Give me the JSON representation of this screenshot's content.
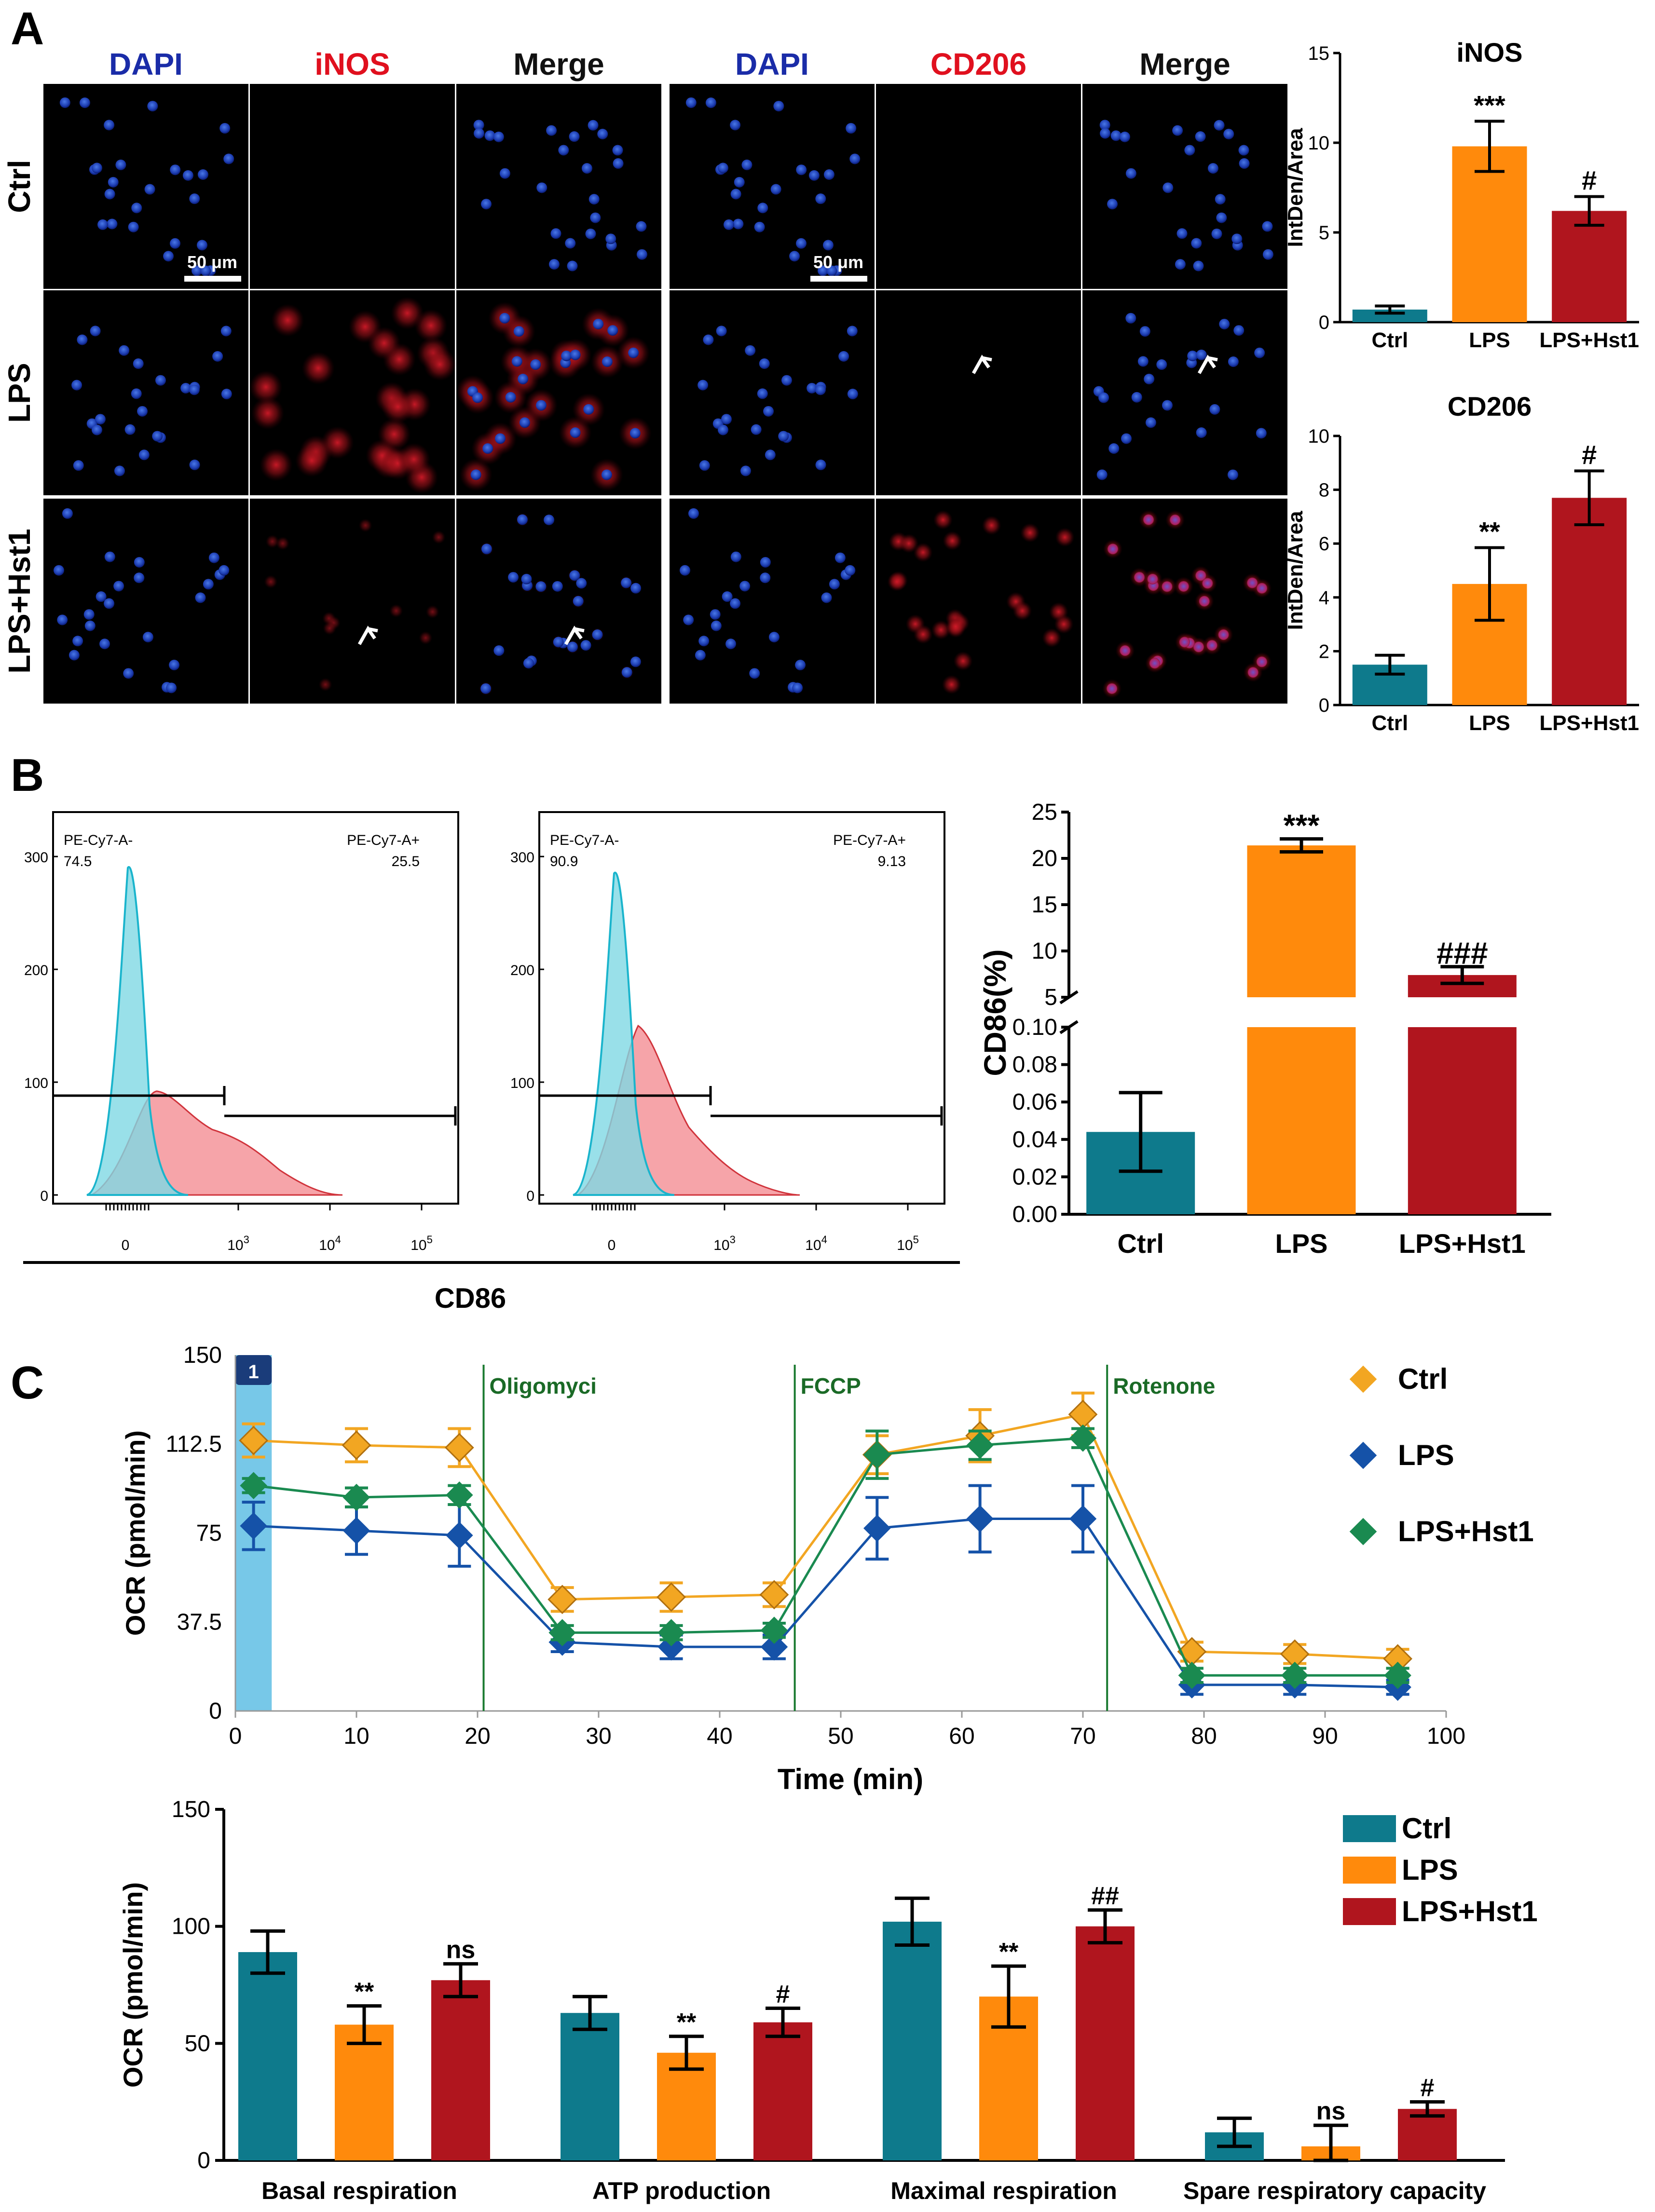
{
  "panels": {
    "A": "A",
    "B": "B",
    "C": "C"
  },
  "micro": {
    "columns": [
      "DAPI",
      "iNOS",
      "Merge",
      "DAPI",
      "CD206",
      "Merge"
    ],
    "column_colors": [
      "#1a2ca8",
      "#e0101e",
      "#111111",
      "#1a2ca8",
      "#e0101e",
      "#111111"
    ],
    "rows": [
      "Ctrl",
      "LPS",
      "LPS+Hst1"
    ],
    "scale_bar": "50 μm"
  },
  "flow": {
    "left": {
      "label_neg": "PE-Cy7-A-",
      "label_pos": "PE-Cy7-A+",
      "pct_neg": "74.5",
      "pct_pos": "25.5"
    },
    "right": {
      "label_neg": "PE-Cy7-A-",
      "label_pos": "PE-Cy7-A+",
      "pct_neg": "90.9",
      "pct_pos": "9.13"
    },
    "y_ticks": [
      "300",
      "200",
      "100",
      "0"
    ],
    "x_tick_zero": "0",
    "x_tick_base": "10",
    "x_exponents": [
      "3",
      "4",
      "5"
    ],
    "xlabel": "CD86"
  },
  "chart_data": [
    {
      "id": "inos",
      "type": "bar",
      "title": "iNOS",
      "ylabel": "IntDen/Area",
      "categories": [
        "Ctrl",
        "LPS",
        "LPS+Hst1"
      ],
      "values": [
        0.7,
        9.8,
        6.2
      ],
      "errors": [
        0.2,
        1.4,
        0.8
      ],
      "annotations": [
        "",
        "***",
        "#"
      ],
      "ylim": [
        0,
        15
      ],
      "yticks": [
        0,
        5,
        10,
        15
      ],
      "colors": [
        "#0e7a8c",
        "#ff8a0c",
        "#b0151e"
      ]
    },
    {
      "id": "cd206",
      "type": "bar",
      "title": "CD206",
      "ylabel": "IntDen/Area",
      "categories": [
        "Ctrl",
        "LPS",
        "LPS+Hst1"
      ],
      "values": [
        1.5,
        4.5,
        7.7
      ],
      "errors": [
        0.35,
        1.35,
        1.0
      ],
      "annotations": [
        "",
        "**",
        "#"
      ],
      "ylim": [
        0,
        10
      ],
      "yticks": [
        0,
        2,
        4,
        6,
        8,
        10
      ],
      "colors": [
        "#0e7a8c",
        "#ff8a0c",
        "#b0151e"
      ]
    },
    {
      "id": "cd86",
      "type": "bar",
      "ylabel": "CD86(%)",
      "broken_axis": true,
      "categories": [
        "Ctrl",
        "LPS",
        "LPS+Hst1"
      ],
      "values": [
        0.044,
        21.4,
        7.4
      ],
      "errors": [
        0.021,
        0.7,
        0.9
      ],
      "annotations": [
        "",
        "***",
        "###"
      ],
      "lower_ylim": [
        0,
        0.1
      ],
      "lower_yticks": [
        "0.00",
        "0.02",
        "0.04",
        "0.06",
        "0.08",
        "0.10"
      ],
      "upper_ylim": [
        5,
        25
      ],
      "upper_yticks": [
        "5",
        "10",
        "15",
        "20",
        "25"
      ],
      "colors": [
        "#0e7a8c",
        "#ff8a0c",
        "#b0151e"
      ]
    },
    {
      "id": "ocr_time",
      "type": "line",
      "xlabel": "Time (min)",
      "ylabel": "OCR (pmol/min)",
      "xlim": [
        0,
        100
      ],
      "xticks": [
        0,
        10,
        20,
        30,
        40,
        50,
        60,
        70,
        80,
        90,
        100
      ],
      "ylim": [
        0,
        150
      ],
      "yticks": [
        "0",
        "37.5",
        "75",
        "112.5",
        "150"
      ],
      "injection_marker": "1",
      "injections": [
        {
          "label": "Oligomyci",
          "x": 20.5
        },
        {
          "label": "FCCP",
          "x": 46.2
        },
        {
          "label": "Rotenone",
          "x": 72.0
        }
      ],
      "x": [
        1.5,
        10,
        18.5,
        27,
        36,
        44.5,
        53,
        61.5,
        70,
        79,
        87.5,
        96
      ],
      "series": [
        {
          "name": "Ctrl",
          "color": "#f2a622",
          "values": [
            114,
            112,
            111,
            47,
            48,
            49,
            108,
            116,
            125,
            25,
            24,
            22
          ],
          "errors": [
            7,
            7,
            8,
            5,
            6,
            5,
            8,
            11,
            9,
            4,
            4,
            4
          ]
        },
        {
          "name": "LPS",
          "color": "#1552a8",
          "values": [
            78,
            76,
            74,
            29,
            27,
            27,
            77,
            81,
            81,
            11,
            11,
            10
          ],
          "errors": [
            10,
            10,
            13,
            4,
            5,
            5,
            13,
            14,
            14,
            4,
            4,
            3
          ]
        },
        {
          "name": "LPS+Hst1",
          "color": "#1a8a50",
          "values": [
            95,
            90,
            91,
            33,
            33,
            34,
            108,
            112,
            115,
            15,
            15,
            15
          ],
          "errors": [
            3,
            4,
            4,
            3,
            3,
            3,
            10,
            6,
            4,
            3,
            3,
            3
          ]
        }
      ]
    },
    {
      "id": "ocr_params",
      "type": "bar",
      "ylabel": "OCR (pmol/min)",
      "ylim": [
        0,
        150
      ],
      "yticks": [
        0,
        50,
        100,
        150
      ],
      "categories": [
        "Basal respiration",
        "ATP production",
        "Maximal respiration",
        "Spare respiratory capacity"
      ],
      "series": [
        {
          "name": "Ctrl",
          "color": "#0e7a8c",
          "values": [
            89,
            63,
            102,
            12
          ],
          "errors": [
            9,
            7,
            10,
            6
          ],
          "annotations": [
            "",
            "",
            "",
            ""
          ]
        },
        {
          "name": "LPS",
          "color": "#ff8a0c",
          "values": [
            58,
            46,
            70,
            6
          ],
          "errors": [
            8,
            7,
            13,
            9
          ],
          "annotations": [
            "**",
            "**",
            "**",
            "ns"
          ]
        },
        {
          "name": "LPS+Hst1",
          "color": "#b0151e",
          "values": [
            77,
            59,
            100,
            22
          ],
          "errors": [
            7,
            6,
            7,
            3
          ],
          "annotations": [
            "ns",
            "#",
            "##",
            "#"
          ]
        }
      ]
    }
  ]
}
